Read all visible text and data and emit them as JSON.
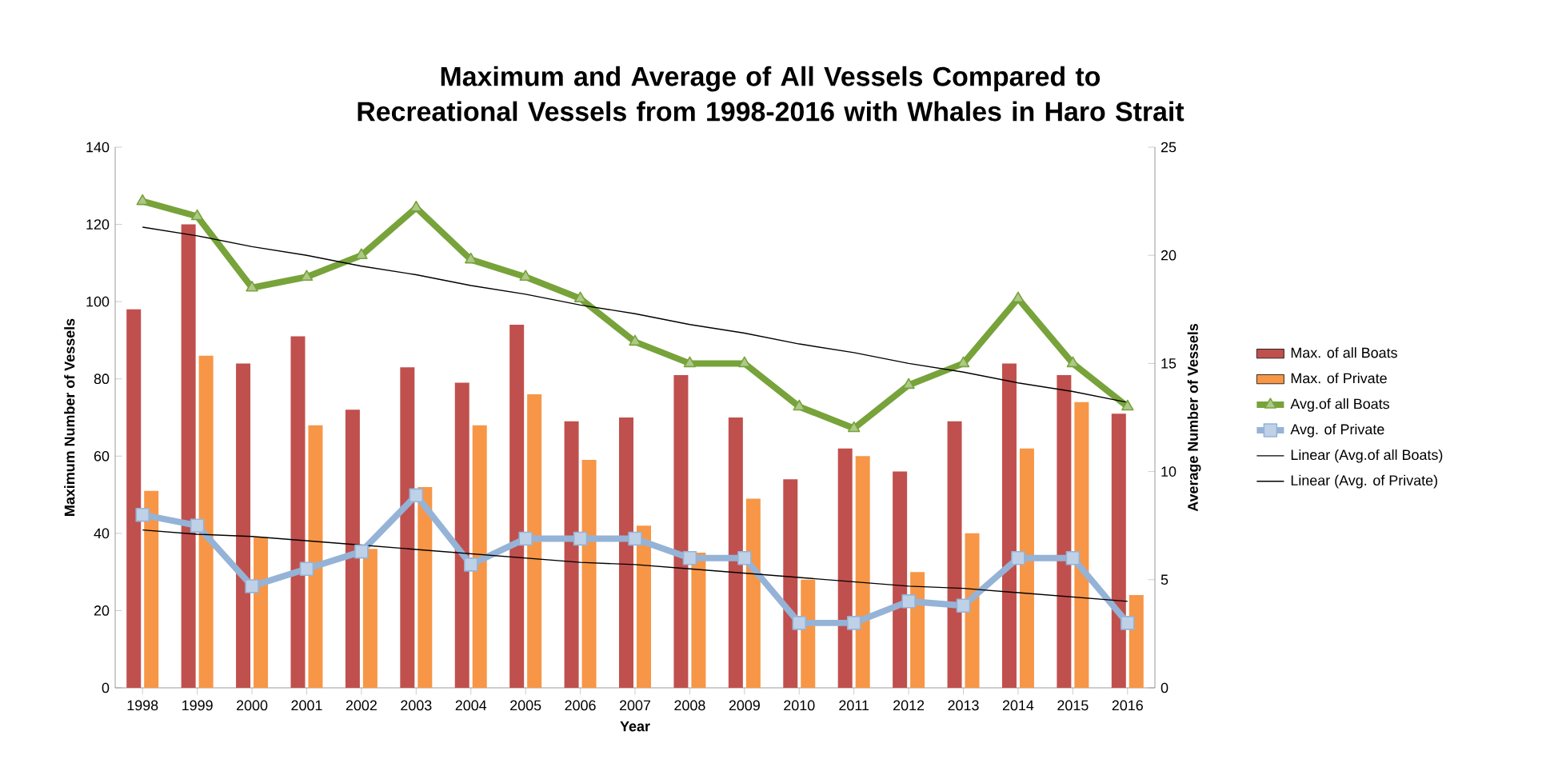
{
  "chart_data": {
    "type": "bar",
    "title": "Maximum and Average of All Vessels Compared to Recreational Vessels from 1998-2016 with Whales in Haro Strait",
    "xlabel": "Year",
    "ylabel": "Maximum Number of Vessels",
    "y2label": "Average Number of Vessels",
    "categories": [
      "1998",
      "1999",
      "2000",
      "2001",
      "2002",
      "2003",
      "2004",
      "2005",
      "2006",
      "2007",
      "2008",
      "2009",
      "2010",
      "2011",
      "2012",
      "2013",
      "2014",
      "2015",
      "2016"
    ],
    "series": [
      {
        "name": "Max. of all Boats",
        "color": "#c0504d",
        "values": [
          98,
          120,
          84,
          91,
          72,
          83,
          79,
          94,
          69,
          70,
          81,
          70,
          54,
          62,
          56,
          69,
          84,
          81,
          71
        ]
      },
      {
        "name": "Max. of Private",
        "color": "#f79646",
        "values": [
          51,
          86,
          39,
          68,
          36,
          52,
          68,
          76,
          59,
          42,
          35,
          49,
          28,
          60,
          30,
          40,
          62,
          74,
          24
        ]
      },
      {
        "name": "Avg.of all Boats",
        "type": "line",
        "axis": "y2",
        "color": "#77a33a",
        "marker": "triangle",
        "values": [
          22.5,
          21.8,
          18.5,
          19,
          20,
          22.2,
          19.8,
          19,
          18,
          16,
          15,
          15,
          13,
          12,
          14,
          15,
          18,
          15,
          13
        ]
      },
      {
        "name": "Avg. of Private",
        "type": "line",
        "axis": "y2",
        "color": "#95b3d7",
        "marker": "square",
        "values": [
          8,
          7.5,
          4.7,
          5.5,
          6.3,
          8.9,
          5.7,
          6.9,
          6.9,
          6.9,
          6,
          6,
          3,
          3,
          4,
          3.8,
          6,
          6,
          3
        ]
      },
      {
        "name": "Linear (Avg.of all Boats)",
        "type": "line",
        "axis": "y2",
        "color": "#000000",
        "marker": "none",
        "values": [
          21.3,
          20.9,
          20.4,
          20.0,
          19.5,
          19.1,
          18.6,
          18.2,
          17.7,
          17.3,
          16.8,
          16.4,
          15.9,
          15.5,
          15.0,
          14.6,
          14.1,
          13.7,
          13.2
        ]
      },
      {
        "name": "Linear (Avg. of Private)",
        "type": "line",
        "axis": "y2",
        "color": "#000000",
        "marker": "none",
        "values": [
          7.3,
          7.1,
          7.0,
          6.8,
          6.6,
          6.4,
          6.2,
          6.0,
          5.8,
          5.7,
          5.5,
          5.3,
          5.1,
          4.9,
          4.7,
          4.6,
          4.4,
          4.2,
          4.0
        ]
      }
    ],
    "ylim": [
      0,
      140
    ],
    "yticks": [
      0,
      20,
      40,
      60,
      80,
      100,
      120,
      140
    ],
    "y2lim": [
      0,
      25
    ],
    "y2ticks": [
      0,
      5,
      10,
      15,
      20,
      25
    ],
    "legend": "right",
    "grid": false
  }
}
